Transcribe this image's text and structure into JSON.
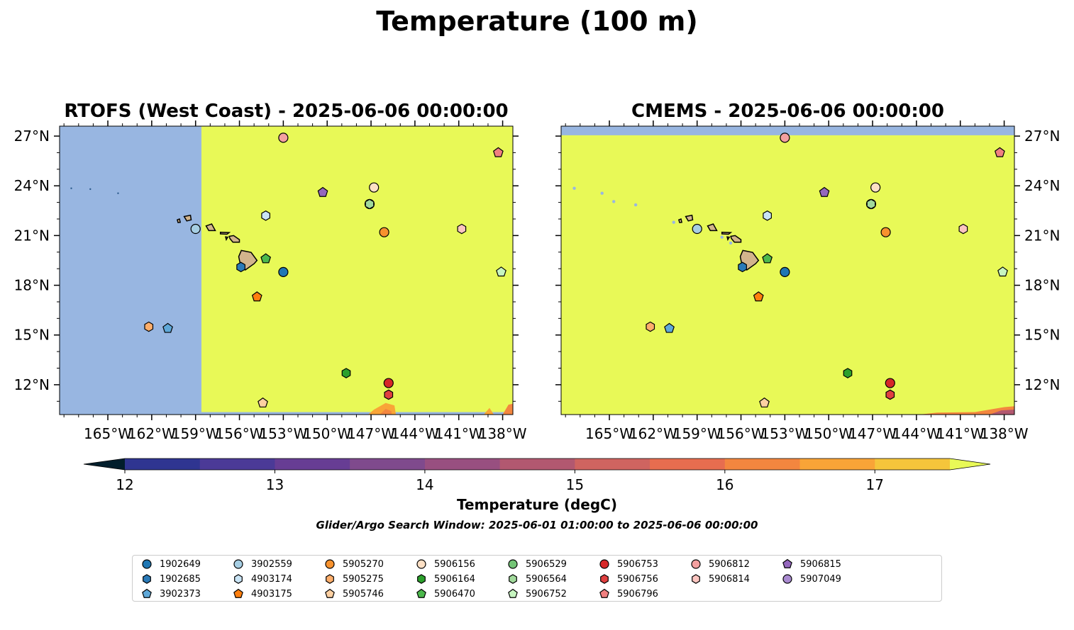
{
  "figure": {
    "title": "Temperature (100 m)",
    "search_window": "Glider/Argo Search Window: 2025-06-01 01:00:00 to 2025-06-06 00:00:00"
  },
  "panels": [
    {
      "title": "RTOFS (West Coast) - 2025-06-06 00:00:00",
      "model": "RTOFS",
      "lat_ticks_side": "left"
    },
    {
      "title": "CMEMS - 2025-06-06 00:00:00",
      "model": "CMEMS",
      "lat_ticks_side": "right"
    }
  ],
  "colors": {
    "land": "#d2b48c",
    "no_data": "#98b6e1",
    "warm_fill": "#e8f957"
  },
  "colorbar": {
    "label": "Temperature (degC)",
    "ticks": [
      "12",
      "13",
      "14",
      "15",
      "16",
      "17"
    ],
    "extend": "both",
    "colors": [
      "#03293d",
      "#0f3275",
      "#2f3591",
      "#4b3a97",
      "#673d94",
      "#7f4a8d",
      "#984f80",
      "#b25870",
      "#cf6460",
      "#e76d4f",
      "#f3863f",
      "#f9a437",
      "#f5c53b"
    ],
    "min_extension_color": "#011e2c",
    "max_extension_color": "#e8f957"
  },
  "chart_data": {
    "type": "map",
    "projection": "lon/lat",
    "xlim": [
      -168.3,
      -137.3
    ],
    "ylim": [
      10.2,
      27.6
    ],
    "x_ticks": [
      -165,
      -162,
      -159,
      -156,
      -153,
      -150,
      -147,
      -144,
      -141,
      -138
    ],
    "x_tick_labels": [
      "165°W",
      "162°W",
      "159°W",
      "156°W",
      "153°W",
      "150°W",
      "147°W",
      "144°W",
      "141°W",
      "138°W"
    ],
    "y_ticks": [
      12,
      15,
      18,
      21,
      24,
      27
    ],
    "y_tick_labels": [
      "12°N",
      "15°N",
      "18°N",
      "21°N",
      "24°N",
      "27°N"
    ],
    "variable": "Temperature (degC) at 100 m",
    "colorbar_range": [
      12,
      17.5
    ],
    "rtofs_no_data_west_of_lon": -158.6,
    "series": [
      {
        "name": "1902649",
        "marker": "circle",
        "color": "#1f77b4",
        "lon": -153.0,
        "lat": 18.8
      },
      {
        "name": "1902685",
        "marker": "hexagon",
        "color": "#2a7ab8",
        "lon": -155.9,
        "lat": 19.1
      },
      {
        "name": "3902373",
        "marker": "pentagon",
        "color": "#5fa8d8",
        "lon": -160.9,
        "lat": 15.4
      },
      {
        "name": "3902559",
        "marker": "circle",
        "color": "#a6cee3",
        "lon": -159.0,
        "lat": 21.4
      },
      {
        "name": "4903174",
        "marker": "hexagon",
        "color": "#c9e4f5",
        "lon": -154.2,
        "lat": 22.2
      },
      {
        "name": "4903175",
        "marker": "pentagon",
        "color": "#ff7f0e",
        "lon": -154.8,
        "lat": 17.3
      },
      {
        "name": "5905270",
        "marker": "circle",
        "color": "#f7922e",
        "lon": -146.1,
        "lat": 21.2
      },
      {
        "name": "5905275",
        "marker": "hexagon",
        "color": "#fdae6b",
        "lon": -162.2,
        "lat": 15.5
      },
      {
        "name": "5905746",
        "marker": "pentagon",
        "color": "#fdd0a2",
        "lon": -154.4,
        "lat": 10.9
      },
      {
        "name": "5906156",
        "marker": "circle",
        "color": "#fde0c5",
        "lon": -146.8,
        "lat": 23.9
      },
      {
        "name": "5906164",
        "marker": "hexagon",
        "color": "#2ca02c",
        "lon": -148.7,
        "lat": 12.7
      },
      {
        "name": "5906470",
        "marker": "pentagon",
        "color": "#4cb84c",
        "lon": -154.2,
        "lat": 19.6
      },
      {
        "name": "5906529",
        "marker": "circle",
        "color": "#74c476",
        "lon": -147.1,
        "lat": 22.9
      },
      {
        "name": "5906564",
        "marker": "hexagon",
        "color": "#a1d99b",
        "lon": -147.1,
        "lat": 22.9
      },
      {
        "name": "5906752",
        "marker": "pentagon",
        "color": "#c7f5c0",
        "lon": -138.1,
        "lat": 18.8
      },
      {
        "name": "5906753",
        "marker": "circle",
        "color": "#d62728",
        "lon": -145.8,
        "lat": 12.1
      },
      {
        "name": "5906756",
        "marker": "hexagon",
        "color": "#e04040",
        "lon": -145.8,
        "lat": 11.4
      },
      {
        "name": "5906796",
        "marker": "pentagon",
        "color": "#f08080",
        "lon": -138.3,
        "lat": 26.0
      },
      {
        "name": "5906812",
        "marker": "circle",
        "color": "#f4a0a0",
        "lon": -153.0,
        "lat": 26.9
      },
      {
        "name": "5906814",
        "marker": "hexagon",
        "color": "#fcc5c0",
        "lon": -140.8,
        "lat": 21.4
      },
      {
        "name": "5906815",
        "marker": "pentagon",
        "color": "#9467bd",
        "lon": -150.3,
        "lat": 23.6
      },
      {
        "name": "5907049",
        "marker": "circle",
        "color": "#a98ad0",
        "lon": null,
        "lat": null
      }
    ]
  }
}
